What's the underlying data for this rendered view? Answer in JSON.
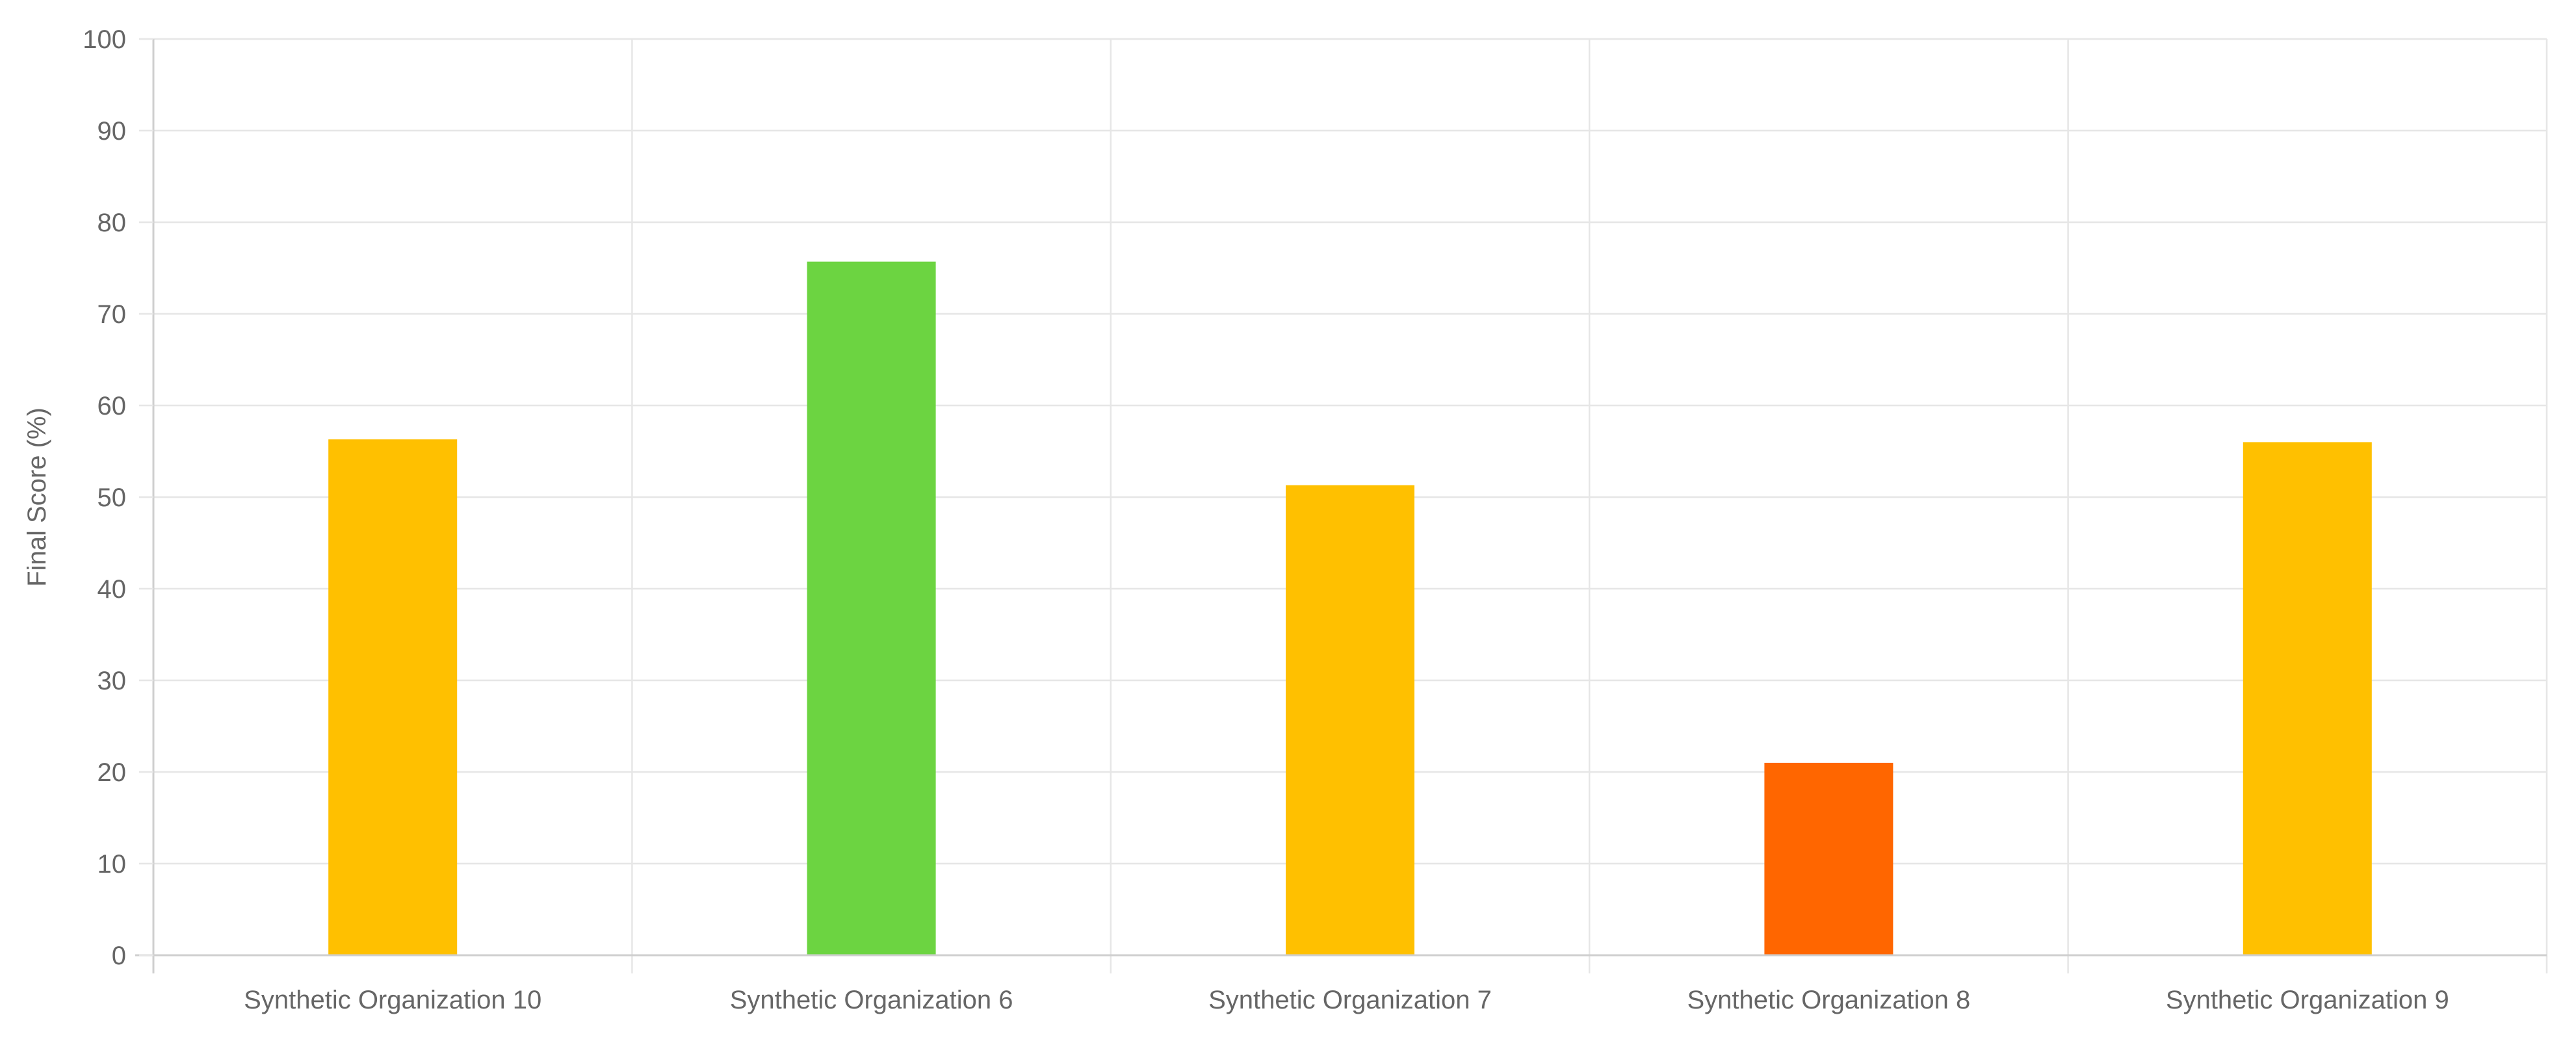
{
  "chart_data": {
    "type": "bar",
    "title": "",
    "xlabel": "",
    "ylabel": "Final Score (%)",
    "ylim": [
      0,
      100
    ],
    "y_ticks": [
      0,
      10,
      20,
      30,
      40,
      50,
      60,
      70,
      80,
      90,
      100
    ],
    "grid": true,
    "legend": "none",
    "categories": [
      "Synthetic Organization 10",
      "Synthetic Organization 6",
      "Synthetic Organization 7",
      "Synthetic Organization 8",
      "Synthetic Organization 9"
    ],
    "values": [
      56.3,
      75.7,
      51.3,
      21.0,
      56.0
    ],
    "bar_colors": [
      "#FFC000",
      "#6CD441",
      "#FFC000",
      "#FF6600",
      "#FFC000"
    ]
  }
}
